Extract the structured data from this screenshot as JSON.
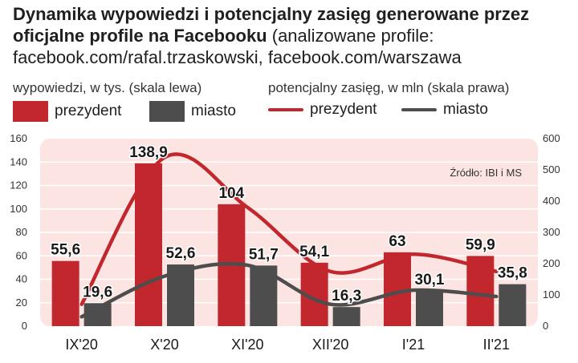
{
  "title": {
    "bold": "Dynamika wypowiedzi i potencjalny zasięg generowane przez oficjalne profile na Facebooku",
    "normal": " (analizowane profile: facebook.com/rafal.trzaskowski, facebook.com/warszawa"
  },
  "left_axis_caption": "wypowiedzi, w tys. (skala lewa)",
  "right_axis_caption": "potencjalny zasięg, w mln (skala prawa)",
  "legend": {
    "bar_president": "prezydent",
    "bar_city": "miasto",
    "line_president": "prezydent",
    "line_city": "miasto"
  },
  "source": "Źródło: IBI i MS",
  "colors": {
    "president": "#c1272d",
    "city": "#4d4d4d",
    "plot_bg": "#fbe4e1",
    "grid": "#ffffff"
  },
  "chart_data": {
    "type": "bar",
    "categories": [
      "IX'20",
      "X'20",
      "XI'20",
      "XII'20",
      "I'21",
      "II'21"
    ],
    "series": [
      {
        "name": "prezydent",
        "axis": "left",
        "kind": "bar",
        "values": [
          55.6,
          138.9,
          104,
          54.1,
          63,
          59.9
        ],
        "labels": [
          "55,6",
          "138,9",
          "104",
          "54,1",
          "63",
          "59,9"
        ]
      },
      {
        "name": "miasto",
        "axis": "left",
        "kind": "bar",
        "values": [
          19.6,
          52.6,
          51.7,
          16.3,
          30.1,
          35.8
        ],
        "labels": [
          "19,6",
          "52,6",
          "51,7",
          "16,3",
          "30,1",
          "35,8"
        ]
      },
      {
        "name": "prezydent",
        "axis": "right",
        "kind": "line",
        "values": [
          70,
          540,
          380,
          175,
          230,
          175
        ]
      },
      {
        "name": "miasto",
        "axis": "right",
        "kind": "line",
        "values": [
          30,
          160,
          195,
          70,
          115,
          95
        ]
      }
    ],
    "y_left": {
      "ylim": [
        0,
        160
      ],
      "ticks": [
        "0",
        "20",
        "40",
        "60",
        "80",
        "100",
        "120",
        "140",
        "160"
      ]
    },
    "y_right": {
      "ylim": [
        0,
        600
      ],
      "ticks": [
        "0",
        "100",
        "200",
        "300",
        "400",
        "500",
        "600"
      ]
    },
    "grid": true
  }
}
